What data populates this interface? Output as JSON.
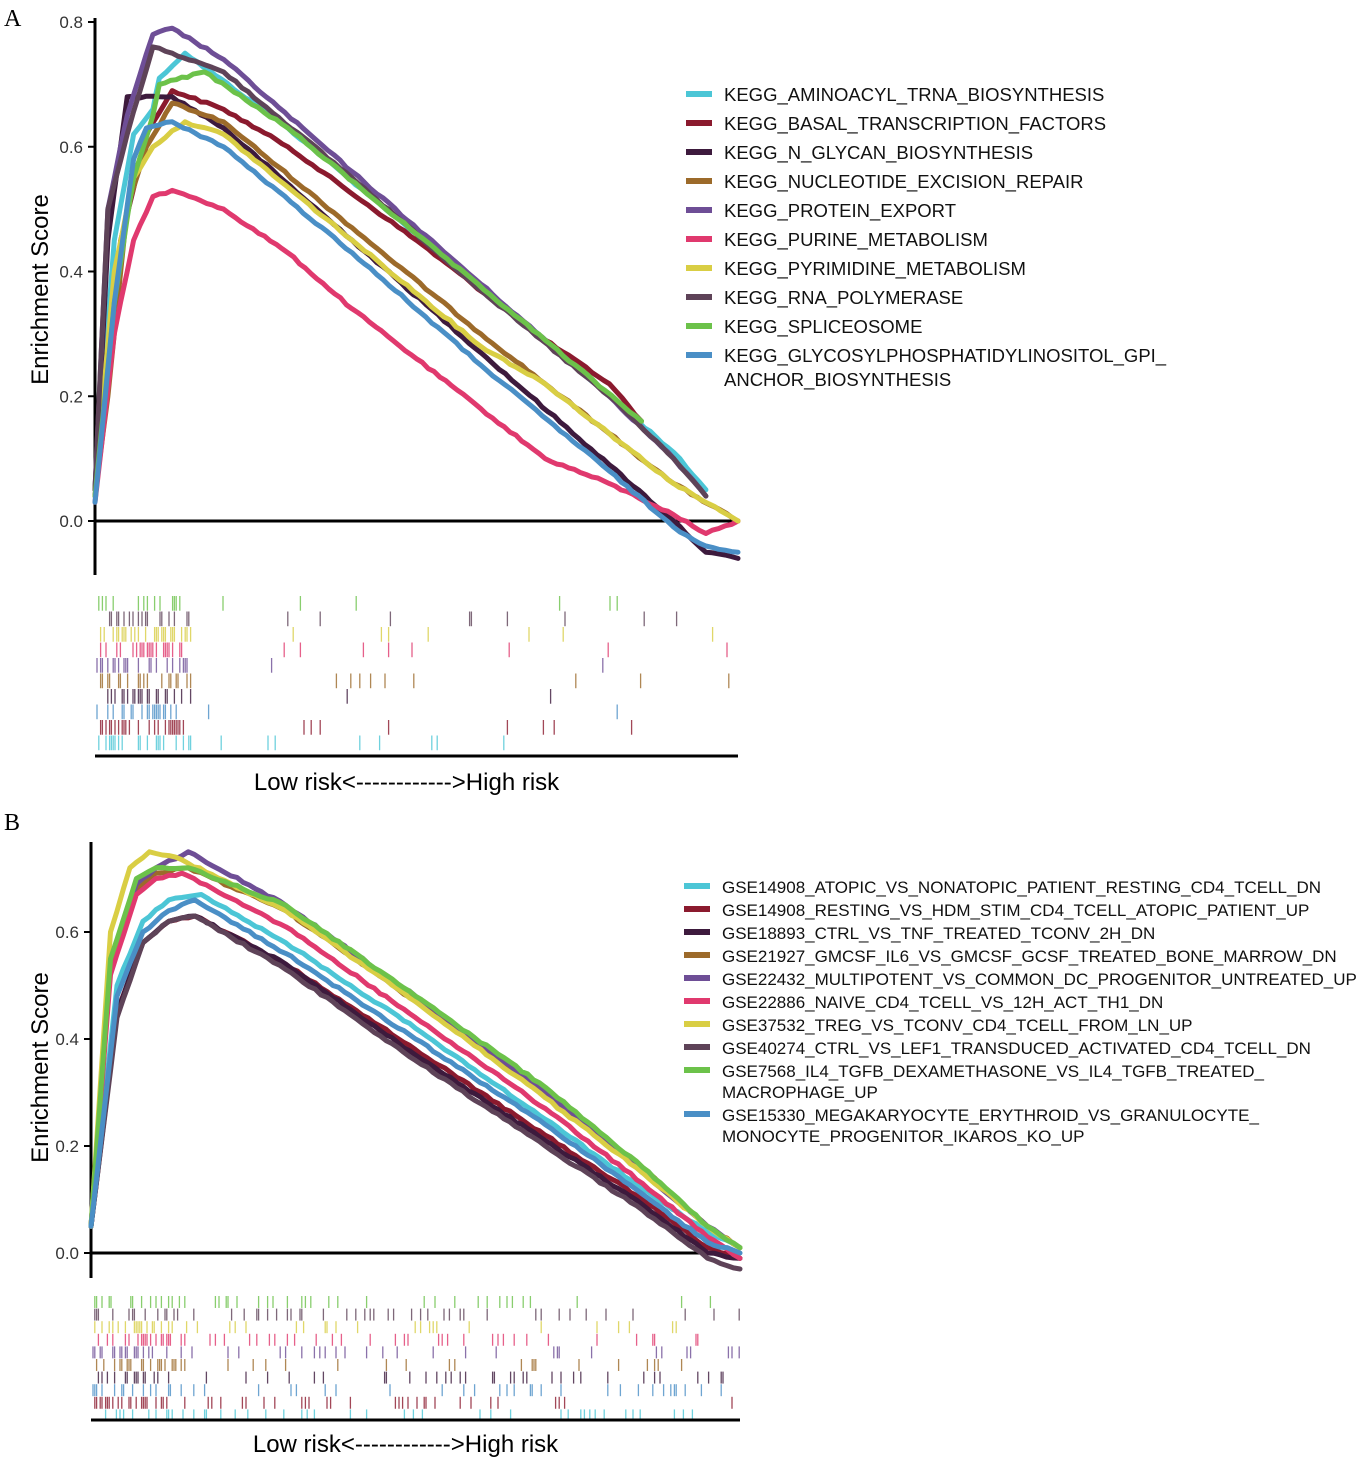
{
  "chart_data": [
    {
      "panel_label": "A",
      "type": "line",
      "ylabel": "Enrichment Score",
      "xlabel": "Low risk<------------>High risk",
      "ylim": [
        -0.08,
        0.8
      ],
      "yticks": [
        "0.0",
        "0.2",
        "0.4",
        "0.6",
        "0.8"
      ],
      "ytick_values": [
        0.0,
        0.2,
        0.4,
        0.6,
        0.8
      ],
      "legend_placement": "right",
      "series": [
        {
          "name": "KEGG_AMINOACYL_TRNA_BIOSYNTHESIS",
          "color": "#4CC6D6",
          "x": [
            0,
            0.03,
            0.06,
            0.09,
            0.1,
            0.14,
            0.3,
            0.5,
            0.7,
            0.8,
            0.9,
            0.95
          ],
          "y": [
            0.05,
            0.45,
            0.62,
            0.66,
            0.71,
            0.75,
            0.63,
            0.46,
            0.29,
            0.2,
            0.11,
            0.05
          ]
        },
        {
          "name": "KEGG_BASAL_TRANSCRIPTION_FACTORS",
          "color": "#8B1A2E",
          "x": [
            0,
            0.04,
            0.08,
            0.12,
            0.2,
            0.3,
            0.5,
            0.7,
            0.8,
            0.85
          ],
          "y": [
            0.04,
            0.45,
            0.62,
            0.69,
            0.66,
            0.6,
            0.45,
            0.29,
            0.22,
            0.16
          ]
        },
        {
          "name": "KEGG_N_GLYCAN_BIOSYNTHESIS",
          "color": "#3D1A3D",
          "x": [
            0,
            0.02,
            0.05,
            0.06,
            0.1,
            0.12,
            0.2,
            0.4,
            0.6,
            0.8,
            0.9,
            0.95,
            1.0
          ],
          "y": [
            0.05,
            0.45,
            0.68,
            0.68,
            0.68,
            0.68,
            0.63,
            0.45,
            0.27,
            0.09,
            0.0,
            -0.05,
            -0.06
          ]
        },
        {
          "name": "KEGG_NUCLEOTIDE_EXCISION_REPAIR",
          "color": "#9C6A2A",
          "x": [
            0,
            0.02,
            0.05,
            0.08,
            0.12,
            0.2,
            0.4,
            0.6,
            0.7,
            0.8,
            0.9,
            1.0
          ],
          "y": [
            0.04,
            0.2,
            0.5,
            0.6,
            0.67,
            0.64,
            0.47,
            0.3,
            0.22,
            0.14,
            0.06,
            0.0
          ]
        },
        {
          "name": "KEGG_PROTEIN_EXPORT",
          "color": "#6E4E96",
          "x": [
            0,
            0.02,
            0.05,
            0.09,
            0.12,
            0.2,
            0.4,
            0.6,
            0.8,
            0.9,
            0.95
          ],
          "y": [
            0.05,
            0.5,
            0.65,
            0.78,
            0.79,
            0.74,
            0.56,
            0.38,
            0.2,
            0.1,
            0.04
          ]
        },
        {
          "name": "KEGG_PURINE_METABOLISM",
          "color": "#E0396E",
          "x": [
            0,
            0.03,
            0.06,
            0.09,
            0.12,
            0.2,
            0.3,
            0.4,
            0.5,
            0.6,
            0.7,
            0.8,
            0.9,
            0.95,
            1.0
          ],
          "y": [
            0.03,
            0.3,
            0.45,
            0.52,
            0.53,
            0.5,
            0.43,
            0.34,
            0.26,
            0.18,
            0.1,
            0.06,
            0.01,
            -0.02,
            0.0
          ]
        },
        {
          "name": "KEGG_PYRIMIDINE_METABOLISM",
          "color": "#D9CE44",
          "x": [
            0,
            0.03,
            0.06,
            0.09,
            0.14,
            0.2,
            0.4,
            0.6,
            0.7,
            0.8,
            0.9,
            1.0
          ],
          "y": [
            0.05,
            0.4,
            0.55,
            0.6,
            0.64,
            0.62,
            0.45,
            0.28,
            0.22,
            0.14,
            0.06,
            0.0
          ]
        },
        {
          "name": "KEGG_RNA_POLYMERASE",
          "color": "#5E4358",
          "x": [
            0,
            0.02,
            0.05,
            0.09,
            0.12,
            0.2,
            0.4,
            0.6,
            0.8,
            0.9,
            0.95
          ],
          "y": [
            0.05,
            0.5,
            0.62,
            0.76,
            0.75,
            0.72,
            0.55,
            0.37,
            0.2,
            0.1,
            0.04
          ]
        },
        {
          "name": "KEGG_SPLICEOSOME",
          "color": "#6CC24A",
          "x": [
            0,
            0.03,
            0.06,
            0.09,
            0.1,
            0.17,
            0.3,
            0.5,
            0.7,
            0.85
          ],
          "y": [
            0.04,
            0.35,
            0.55,
            0.65,
            0.7,
            0.72,
            0.63,
            0.46,
            0.29,
            0.16
          ]
        },
        {
          "name": "KEGG_GLYCOSYLPHOSPHATIDYLINOSITOL_GPI_\nANCHOR_BIOSYNTHESIS",
          "color": "#4A8FC6",
          "x": [
            0,
            0.03,
            0.06,
            0.08,
            0.12,
            0.2,
            0.4,
            0.6,
            0.8,
            0.9,
            0.95,
            1.0
          ],
          "y": [
            0.03,
            0.35,
            0.58,
            0.63,
            0.64,
            0.6,
            0.43,
            0.25,
            0.08,
            -0.01,
            -0.04,
            -0.05
          ]
        }
      ],
      "legend_lines": [
        [
          "KEGG_AMINOACYL_TRNA_BIOSYNTHESIS"
        ],
        [
          "KEGG_BASAL_TRANSCRIPTION_FACTORS"
        ],
        [
          "KEGG_N_GLYCAN_BIOSYNTHESIS"
        ],
        [
          "KEGG_NUCLEOTIDE_EXCISION_REPAIR"
        ],
        [
          "KEGG_PROTEIN_EXPORT"
        ],
        [
          "KEGG_PURINE_METABOLISM"
        ],
        [
          "KEGG_PYRIMIDINE_METABOLISM"
        ],
        [
          "KEGG_RNA_POLYMERASE"
        ],
        [
          "KEGG_SPLICEOSOME"
        ],
        [
          "KEGG_GLYCOSYLPHOSPHATIDYLINOSITOL_GPI_",
          "ANCHOR_BIOSYNTHESIS"
        ]
      ],
      "rug_colors": [
        "#6CC24A",
        "#5E4358",
        "#D9CE44",
        "#E0396E",
        "#6E4E96",
        "#9C6A2A",
        "#3D1A3D",
        "#4A8FC6",
        "#8B1A2E",
        "#4CC6D6"
      ]
    },
    {
      "panel_label": "B",
      "type": "line",
      "ylabel": "Enrichment Score",
      "xlabel": "Low risk<------------>High risk",
      "ylim": [
        -0.03,
        0.77
      ],
      "yticks": [
        "0.0",
        "0.2",
        "0.4",
        "0.6"
      ],
      "ytick_values": [
        0.0,
        0.2,
        0.4,
        0.6
      ],
      "legend_placement": "right",
      "series": [
        {
          "name": "GSE14908_ATOPIC_VS_NONATOPIC_PATIENT_RESTING_CD4_TCELL_DN",
          "color": "#4CC6D6",
          "x": [
            0,
            0.04,
            0.08,
            0.12,
            0.17,
            0.3,
            0.5,
            0.7,
            0.85,
            0.95,
            1.0
          ],
          "y": [
            0.05,
            0.5,
            0.62,
            0.66,
            0.67,
            0.58,
            0.42,
            0.25,
            0.12,
            0.04,
            0.01
          ]
        },
        {
          "name": "GSE14908_RESTING_VS_HDM_STIM_CD4_TCELL_ATOPIC_PATIENT_UP",
          "color": "#8B1A2E",
          "x": [
            0,
            0.04,
            0.08,
            0.12,
            0.16,
            0.3,
            0.5,
            0.7,
            0.85,
            0.95,
            1.0
          ],
          "y": [
            0.05,
            0.45,
            0.58,
            0.62,
            0.63,
            0.54,
            0.38,
            0.22,
            0.1,
            0.01,
            -0.01
          ]
        },
        {
          "name": "GSE18893_CTRL_VS_TNF_TREATED_TCONV_2H_DN",
          "color": "#3D1A3D",
          "x": [
            0,
            0.04,
            0.08,
            0.12,
            0.16,
            0.3,
            0.5,
            0.7,
            0.85,
            0.95,
            1.0
          ],
          "y": [
            0.05,
            0.45,
            0.58,
            0.62,
            0.63,
            0.54,
            0.37,
            0.21,
            0.09,
            0.0,
            -0.01
          ]
        },
        {
          "name": "GSE21927_GMCSF_IL6_VS_GMCSF_GCSF_TREATED_BONE_MARROW_DN",
          "color": "#9C6A2A",
          "x": [
            0,
            0.03,
            0.07,
            0.1,
            0.15,
            0.3,
            0.5,
            0.7,
            0.85,
            0.95,
            1.0
          ],
          "y": [
            0.05,
            0.55,
            0.68,
            0.71,
            0.72,
            0.64,
            0.47,
            0.3,
            0.16,
            0.05,
            0.01
          ]
        },
        {
          "name": "GSE22432_MULTIPOTENT_VS_COMMON_DC_PROGENITOR_UNTREATED_UP",
          "color": "#6E4E96",
          "x": [
            0,
            0.03,
            0.07,
            0.1,
            0.15,
            0.3,
            0.5,
            0.7,
            0.85,
            0.95,
            1.0
          ],
          "y": [
            0.05,
            0.55,
            0.69,
            0.72,
            0.75,
            0.65,
            0.48,
            0.3,
            0.15,
            0.05,
            0.01
          ]
        },
        {
          "name": "GSE22886_NAIVE_CD4_TCELL_VS_12H_ACT_TH1_DN",
          "color": "#E0396E",
          "x": [
            0,
            0.03,
            0.07,
            0.1,
            0.14,
            0.3,
            0.5,
            0.7,
            0.85,
            0.95,
            1.0
          ],
          "y": [
            0.05,
            0.52,
            0.67,
            0.7,
            0.71,
            0.61,
            0.44,
            0.27,
            0.13,
            0.03,
            -0.01
          ]
        },
        {
          "name": "GSE37532_TREG_VS_TCONV_CD4_TCELL_FROM_LN_UP",
          "color": "#D9CE44",
          "x": [
            0,
            0.03,
            0.06,
            0.09,
            0.13,
            0.3,
            0.5,
            0.7,
            0.85,
            0.95,
            1.0
          ],
          "y": [
            0.05,
            0.6,
            0.72,
            0.75,
            0.74,
            0.64,
            0.47,
            0.29,
            0.15,
            0.05,
            0.01
          ]
        },
        {
          "name": "GSE40274_CTRL_VS_LEF1_TRANSDUCED_ACTIVATED_CD4_TCELL_DN",
          "color": "#5E4358",
          "x": [
            0,
            0.04,
            0.08,
            0.12,
            0.16,
            0.3,
            0.5,
            0.7,
            0.85,
            0.95,
            1.0
          ],
          "y": [
            0.05,
            0.44,
            0.58,
            0.62,
            0.63,
            0.53,
            0.36,
            0.2,
            0.08,
            -0.01,
            -0.03
          ]
        },
        {
          "name": "GSE7568_IL4_TGFB_DEXAMETHASONE_VS_IL4_TGFB_TREATED_\nMACROPHAGE_UP",
          "color": "#6CC24A",
          "x": [
            0,
            0.03,
            0.07,
            0.1,
            0.15,
            0.3,
            0.5,
            0.7,
            0.85,
            0.95,
            1.0
          ],
          "y": [
            0.05,
            0.55,
            0.7,
            0.72,
            0.72,
            0.65,
            0.48,
            0.31,
            0.16,
            0.05,
            0.01
          ]
        },
        {
          "name": "GSE15330_MEGAKARYOCYTE_ERYTHROID_VS_GRANULOCYTE_\nMONOCYTE_PROGENITOR_IKAROS_KO_UP",
          "color": "#4A8FC6",
          "x": [
            0,
            0.04,
            0.08,
            0.12,
            0.16,
            0.3,
            0.5,
            0.7,
            0.85,
            0.95,
            1.0
          ],
          "y": [
            0.05,
            0.48,
            0.6,
            0.64,
            0.66,
            0.56,
            0.4,
            0.24,
            0.11,
            0.02,
            0.0
          ]
        }
      ],
      "legend_lines": [
        [
          "GSE14908_ATOPIC_VS_NONATOPIC_PATIENT_RESTING_CD4_TCELL_DN"
        ],
        [
          "GSE14908_RESTING_VS_HDM_STIM_CD4_TCELL_ATOPIC_PATIENT_UP"
        ],
        [
          "GSE18893_CTRL_VS_TNF_TREATED_TCONV_2H_DN"
        ],
        [
          "GSE21927_GMCSF_IL6_VS_GMCSF_GCSF_TREATED_BONE_MARROW_DN"
        ],
        [
          "GSE22432_MULTIPOTENT_VS_COMMON_DC_PROGENITOR_UNTREATED_UP"
        ],
        [
          "GSE22886_NAIVE_CD4_TCELL_VS_12H_ACT_TH1_DN"
        ],
        [
          "GSE37532_TREG_VS_TCONV_CD4_TCELL_FROM_LN_UP"
        ],
        [
          "GSE40274_CTRL_VS_LEF1_TRANSDUCED_ACTIVATED_CD4_TCELL_DN"
        ],
        [
          "GSE7568_IL4_TGFB_DEXAMETHASONE_VS_IL4_TGFB_TREATED_",
          "MACROPHAGE_UP"
        ],
        [
          "GSE15330_MEGAKARYOCYTE_ERYTHROID_VS_GRANULOCYTE_",
          "MONOCYTE_PROGENITOR_IKAROS_KO_UP"
        ]
      ],
      "rug_colors": [
        "#6CC24A",
        "#5E4358",
        "#D9CE44",
        "#E0396E",
        "#6E4E96",
        "#9C6A2A",
        "#3D1A3D",
        "#4A8FC6",
        "#8B1A2E",
        "#4CC6D6"
      ]
    }
  ]
}
